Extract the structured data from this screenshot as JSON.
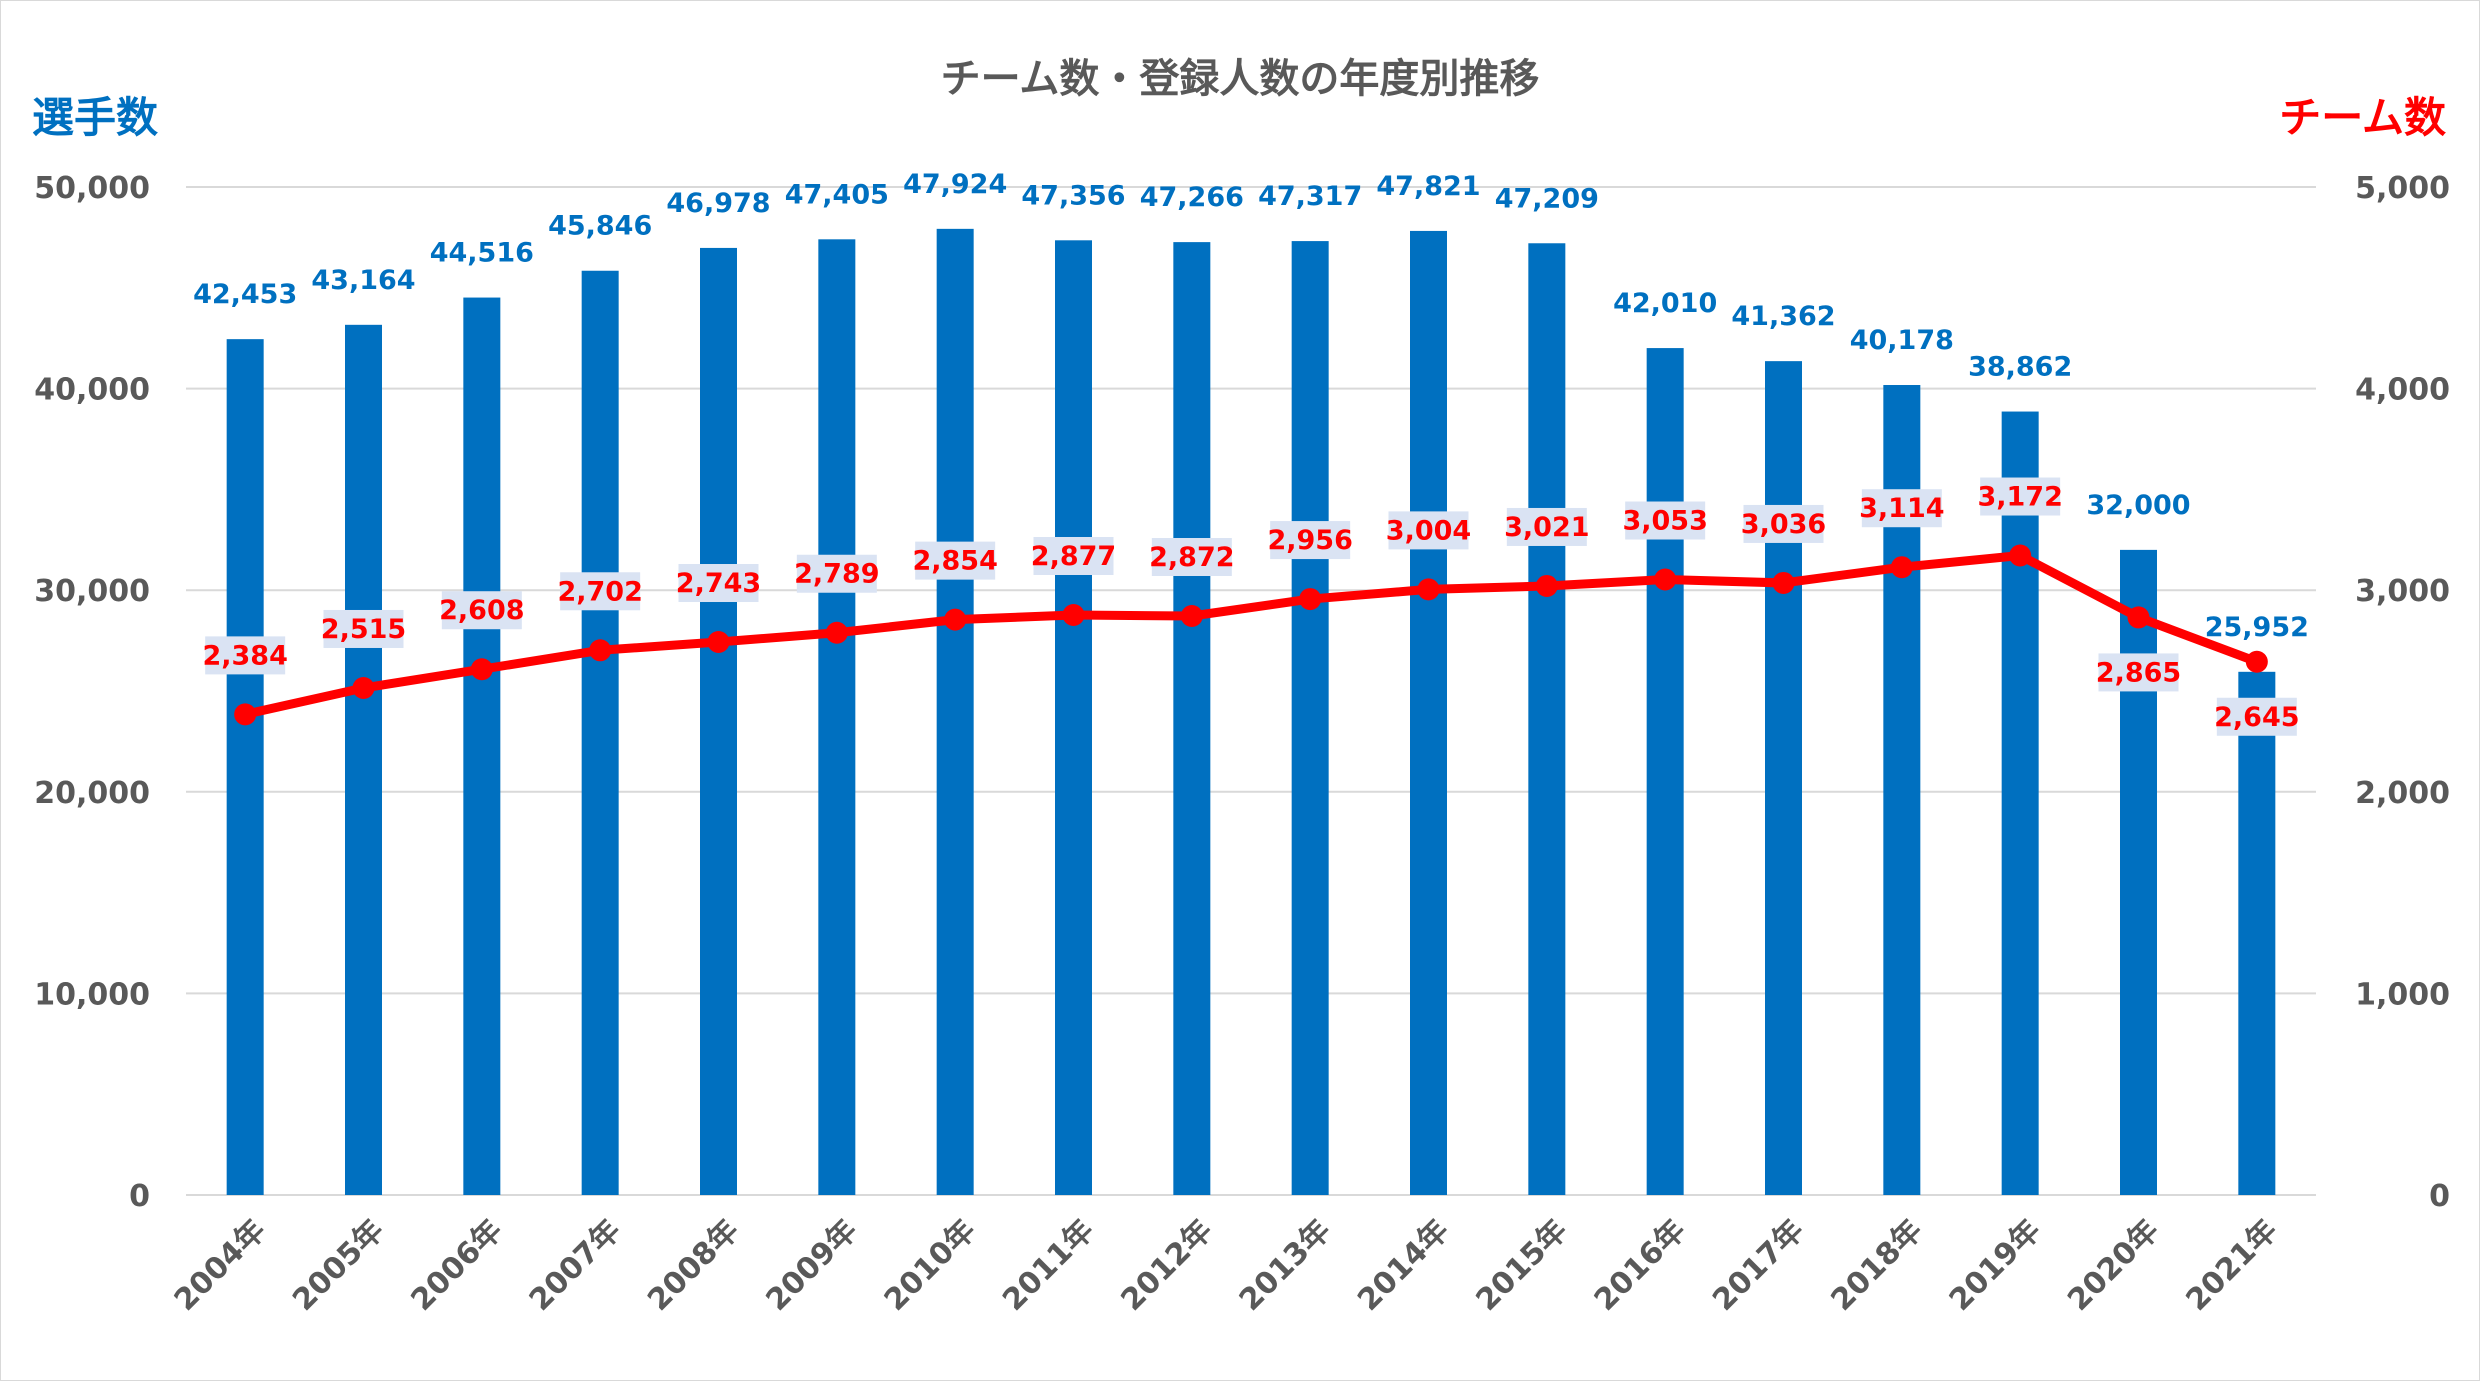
{
  "chart_data": {
    "type": "bar",
    "title": "チーム数・登録人数の年度別推移",
    "categories": [
      "2004年",
      "2005年",
      "2006年",
      "2007年",
      "2008年",
      "2009年",
      "2010年",
      "2011年",
      "2012年",
      "2013年",
      "2014年",
      "2015年",
      "2016年",
      "2017年",
      "2018年",
      "2019年",
      "2020年",
      "2021年"
    ],
    "y_left": {
      "label": "選手数",
      "min": 0,
      "max": 50000,
      "ticks": [
        0,
        10000,
        20000,
        30000,
        40000,
        50000
      ],
      "tick_labels": [
        "0",
        "10,000",
        "20,000",
        "30,000",
        "40,000",
        "50,000"
      ]
    },
    "y_right": {
      "label": "チーム数",
      "min": 0,
      "max": 5000,
      "ticks": [
        0,
        1000,
        2000,
        3000,
        4000,
        5000
      ],
      "tick_labels": [
        "0",
        "1,000",
        "2,000",
        "3,000",
        "4,000",
        "5,000"
      ]
    },
    "grid": true,
    "series": [
      {
        "name": "選手数",
        "type": "bar",
        "axis": "left",
        "color": "#0070c0",
        "values": [
          42453,
          43164,
          44516,
          45846,
          46978,
          47405,
          47924,
          47356,
          47266,
          47317,
          47821,
          47209,
          42010,
          41362,
          40178,
          38862,
          32000,
          25952
        ],
        "labels": [
          "42,453",
          "43,164",
          "44,516",
          "45,846",
          "46,978",
          "47,405",
          "47,924",
          "47,356",
          "47,266",
          "47,317",
          "47,821",
          "47,209",
          "42,010",
          "41,362",
          "40,178",
          "38,862",
          "32,000",
          "25,952"
        ]
      },
      {
        "name": "チーム数",
        "type": "line",
        "axis": "right",
        "color": "#ff0000",
        "values": [
          2384,
          2515,
          2608,
          2702,
          2743,
          2789,
          2854,
          2877,
          2872,
          2956,
          3004,
          3021,
          3053,
          3036,
          3114,
          3172,
          2865,
          2645
        ],
        "labels": [
          "2,384",
          "2,515",
          "2,608",
          "2,702",
          "2,743",
          "2,789",
          "2,854",
          "2,877",
          "2,872",
          "2,956",
          "3,004",
          "3,021",
          "3,053",
          "3,036",
          "3,114",
          "3,172",
          "2,865",
          "2,645"
        ]
      }
    ],
    "colors": {
      "left_axis_title": "#0070c0",
      "right_axis_title": "#ff0000",
      "grid": "#d9d9d9",
      "label_box": "#dae3f3"
    }
  }
}
